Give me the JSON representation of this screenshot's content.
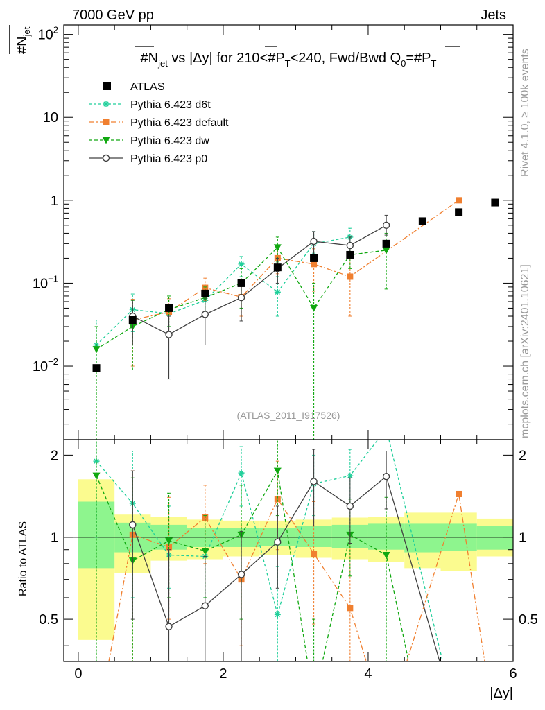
{
  "header": {
    "left": "7000 GeV pp",
    "right": "Jets"
  },
  "side_labels": {
    "rivet": "Rivet 4.1.0, ≥ 100k events",
    "site": "mcplots.cern.ch [arXiv:2401.10621]"
  },
  "colors": {
    "atlas": "#000000",
    "d6t": "#1fcf9a",
    "default": "#f07f2f",
    "dw": "#10a810",
    "p0": "#404040",
    "band_inner": "#8ef58e",
    "band_outer": "#fbfb8f"
  },
  "chart_data": [
    {
      "type": "scatter",
      "title_parts": {
        "a": "#N",
        "a_sub": "jet",
        "b": " vs |Δy|  for 210<#P",
        "b_sub": "T",
        "c": "<240, Fwd/Bwd Q",
        "c_sub": "0",
        "d": "=#P",
        "d_sub": "T"
      },
      "ylabel": {
        "main": "#N",
        "sub": "jet"
      },
      "xlabel": "|Δy|",
      "watermark": "(ATLAS_2011_I917526)",
      "x_range": [
        -0.2,
        6.0
      ],
      "y_range": [
        0.0013,
        130
      ],
      "y_scale": "log",
      "y_ticks": [
        {
          "v": 0.01,
          "base": "10",
          "exp": "−2"
        },
        {
          "v": 0.1,
          "base": "10",
          "exp": "−1"
        },
        {
          "v": 1,
          "base": "1",
          "exp": ""
        },
        {
          "v": 10,
          "base": "10",
          "exp": ""
        },
        {
          "v": 100,
          "base": "10",
          "exp": "2"
        }
      ],
      "legend": [
        {
          "key": "atlas",
          "label": "ATLAS"
        },
        {
          "key": "d6t",
          "label": "Pythia 6.423 d6t"
        },
        {
          "key": "default",
          "label": "Pythia 6.423 default"
        },
        {
          "key": "dw",
          "label": "Pythia 6.423 dw"
        },
        {
          "key": "p0",
          "label": "Pythia 6.423 p0"
        }
      ],
      "atlas": {
        "x": [
          0.25,
          0.75,
          1.25,
          1.75,
          2.25,
          2.75,
          3.25,
          3.75,
          4.25,
          4.75,
          5.25,
          5.75
        ],
        "y": [
          0.0095,
          0.036,
          0.05,
          0.075,
          0.1,
          0.155,
          0.2,
          0.22,
          0.3,
          0.56,
          0.72,
          0.94
        ]
      },
      "series": [
        {
          "key": "d6t",
          "name": "Pythia 6.423 d6t",
          "marker": "star",
          "dash": "4,3",
          "x": [
            0.25,
            0.75,
            1.25,
            1.75,
            2.25,
            2.75,
            3.25,
            3.75
          ],
          "y": [
            0.018,
            0.048,
            0.043,
            0.062,
            0.17,
            0.078,
            0.3,
            0.36
          ],
          "lo": [
            0.009,
            0.026,
            0.03,
            0.042,
            0.12,
            0.04,
            0.23,
            0.28
          ],
          "hi": [
            0.036,
            0.074,
            0.063,
            0.082,
            0.21,
            0.12,
            0.42,
            0.46
          ]
        },
        {
          "key": "default",
          "name": "Pythia 6.423 default",
          "marker": "square",
          "dash": "8,3,2,3",
          "x": [
            0.75,
            1.25,
            1.75,
            2.25,
            2.75,
            3.25,
            3.75,
            5.25
          ],
          "y": [
            0.036,
            0.045,
            0.088,
            0.068,
            0.2,
            0.17,
            0.12,
            1.0
          ],
          "lo": [
            0.01,
            0.025,
            0.062,
            0.04,
            0.13,
            0.08,
            0.04,
            0.98
          ],
          "hi": [
            0.064,
            0.065,
            0.115,
            0.095,
            0.27,
            0.26,
            0.22,
            1.02
          ]
        },
        {
          "key": "dw",
          "name": "Pythia 6.423 dw",
          "marker": "triangle",
          "dash": "5,3",
          "x": [
            0.25,
            0.75,
            1.25,
            1.75,
            2.25,
            2.75,
            3.25,
            3.75,
            4.25
          ],
          "y": [
            0.016,
            0.03,
            0.048,
            0.067,
            0.1,
            0.27,
            0.05,
            0.22,
            0.25
          ],
          "lo": [
            0.0013,
            0.009,
            0.03,
            0.045,
            0.05,
            0.18,
            0.0013,
            0.15,
            0.085
          ],
          "hi": [
            0.03,
            0.062,
            0.07,
            0.09,
            0.15,
            0.36,
            0.1,
            0.3,
            0.4
          ]
        },
        {
          "key": "p0",
          "name": "Pythia 6.423 p0",
          "marker": "circle",
          "dash": "",
          "x": [
            0.75,
            1.25,
            1.75,
            2.25,
            2.75,
            3.25,
            3.75,
            4.25
          ],
          "y": [
            0.04,
            0.024,
            0.042,
            0.067,
            0.15,
            0.32,
            0.285,
            0.5
          ],
          "lo": [
            0.018,
            0.007,
            0.018,
            0.035,
            0.1,
            0.22,
            0.21,
            0.38
          ],
          "hi": [
            0.063,
            0.04,
            0.066,
            0.1,
            0.2,
            0.42,
            0.36,
            0.66
          ]
        }
      ]
    },
    {
      "type": "line",
      "ylabel": "Ratio to ATLAS",
      "x_range": [
        -0.2,
        6.0
      ],
      "y_range": [
        0.35,
        2.28
      ],
      "x_ticks": [
        0,
        2,
        4,
        6
      ],
      "y_ticks": [
        0.5,
        1,
        2
      ],
      "band_edges": [
        0,
        0.5,
        1,
        1.5,
        2,
        2.5,
        3,
        3.5,
        4,
        4.5,
        5,
        5.5,
        6
      ],
      "band_inner": [
        [
          0.77,
          1.35
        ],
        [
          0.88,
          1.13
        ],
        [
          0.9,
          1.11
        ],
        [
          0.92,
          1.08
        ],
        [
          0.92,
          1.08
        ],
        [
          0.93,
          1.08
        ],
        [
          0.92,
          1.1
        ],
        [
          0.91,
          1.11
        ],
        [
          0.9,
          1.12
        ],
        [
          0.88,
          1.12
        ],
        [
          0.89,
          1.12
        ],
        [
          0.9,
          1.1
        ]
      ],
      "band_outer": [
        [
          0.42,
          1.63
        ],
        [
          0.74,
          1.21
        ],
        [
          0.82,
          1.19
        ],
        [
          0.83,
          1.16
        ],
        [
          0.85,
          1.15
        ],
        [
          0.86,
          1.15
        ],
        [
          0.84,
          1.16
        ],
        [
          0.83,
          1.18
        ],
        [
          0.81,
          1.19
        ],
        [
          0.77,
          1.23
        ],
        [
          0.75,
          1.23
        ],
        [
          0.85,
          1.17
        ]
      ],
      "series": [
        {
          "key": "d6t",
          "marker": "star",
          "dash": "4,3",
          "x": [
            0.25,
            0.75,
            1.25,
            1.75,
            2.25,
            2.75,
            3.25,
            3.75,
            4.25,
            5.25
          ],
          "y": [
            1.9,
            1.33,
            0.86,
            0.85,
            1.72,
            0.52,
            1.57,
            1.68,
            2.5,
            0.2
          ],
          "lo": [
            1.0,
            0.6,
            0.65,
            0.6,
            1.3,
            0.27,
            1.2,
            1.3,
            2.5,
            0.2
          ],
          "hi": [
            2.5,
            2.07,
            1.3,
            1.1,
            2.15,
            0.78,
            2.0,
            2.1,
            2.5,
            0.2
          ]
        },
        {
          "key": "default",
          "marker": "square",
          "dash": "8,3,2,3",
          "x": [
            0.25,
            0.75,
            1.25,
            1.75,
            2.25,
            2.75,
            3.25,
            3.75,
            4.25,
            5.25,
            5.75
          ],
          "y": [
            0.2,
            1.02,
            0.92,
            1.18,
            0.7,
            1.38,
            0.87,
            0.55,
            0.2,
            1.44,
            0.2
          ],
          "lo": [
            0.2,
            0.3,
            0.5,
            0.8,
            0.4,
            0.9,
            0.48,
            0.2,
            0.2,
            1.44,
            0.2
          ],
          "hi": [
            0.2,
            1.75,
            1.4,
            1.55,
            1.1,
            1.9,
            1.35,
            1.0,
            0.2,
            1.44,
            0.2
          ]
        },
        {
          "key": "dw",
          "marker": "triangle",
          "dash": "5,3",
          "x": [
            0.25,
            0.75,
            1.25,
            1.75,
            2.25,
            2.75,
            3.25,
            3.75,
            4.25,
            4.75
          ],
          "y": [
            1.68,
            0.82,
            0.97,
            0.89,
            1.02,
            1.75,
            0.25,
            1.02,
            0.86,
            0.2
          ],
          "lo": [
            0.2,
            0.3,
            0.6,
            0.6,
            0.5,
            1.2,
            0.2,
            0.72,
            0.3,
            0.2
          ],
          "hi": [
            2.5,
            1.65,
            1.45,
            1.2,
            1.55,
            2.3,
            0.5,
            1.38,
            1.4,
            0.2
          ]
        },
        {
          "key": "p0",
          "marker": "circle",
          "dash": "",
          "x": [
            0.75,
            1.25,
            1.75,
            2.25,
            2.75,
            3.25,
            3.75,
            4.25,
            5.25
          ],
          "y": [
            1.11,
            0.47,
            0.56,
            0.73,
            0.96,
            1.6,
            1.3,
            1.67,
            0.2
          ],
          "lo": [
            0.5,
            0.2,
            0.25,
            0.35,
            0.65,
            1.1,
            0.95,
            1.27,
            0.2
          ],
          "hi": [
            1.75,
            0.9,
            0.85,
            1.05,
            1.3,
            2.1,
            1.65,
            2.07,
            0.2
          ]
        }
      ]
    }
  ]
}
